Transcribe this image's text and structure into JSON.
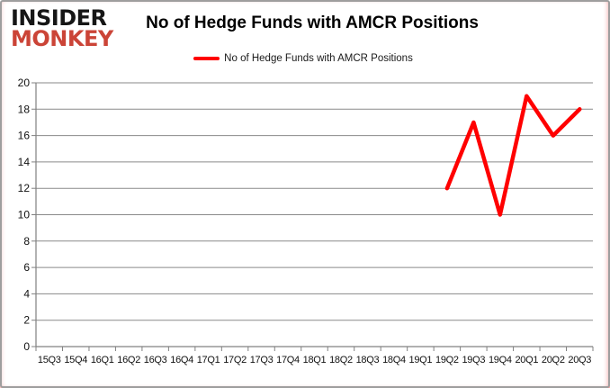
{
  "brand": {
    "line1": "INSIDER",
    "line2": "MONKEY",
    "color": "#CB4437"
  },
  "header": {
    "title": "No of Hedge Funds with AMCR Positions"
  },
  "legend": {
    "label": "No of Hedge Funds with AMCR Positions",
    "line_color": "#FF0000"
  },
  "chart_data": {
    "type": "line",
    "title": "No of Hedge Funds with AMCR Positions",
    "xlabel": "",
    "ylabel": "",
    "categories": [
      "15Q3",
      "15Q4",
      "16Q1",
      "16Q2",
      "16Q3",
      "16Q4",
      "17Q1",
      "17Q2",
      "17Q3",
      "17Q4",
      "18Q1",
      "18Q2",
      "18Q3",
      "18Q4",
      "19Q1",
      "19Q2",
      "19Q3",
      "19Q4",
      "20Q1",
      "20Q2",
      "20Q3"
    ],
    "series": [
      {
        "name": "No of Hedge Funds with AMCR Positions",
        "color": "#FF0000",
        "values": [
          null,
          null,
          null,
          null,
          null,
          null,
          null,
          null,
          null,
          null,
          null,
          null,
          null,
          null,
          null,
          12,
          17,
          10,
          19,
          16,
          18
        ]
      }
    ],
    "ylim": [
      0,
      20
    ],
    "yticks": [
      0,
      2,
      4,
      6,
      8,
      10,
      12,
      14,
      16,
      18,
      20
    ],
    "grid": true,
    "legend_position": "top-center"
  },
  "colors": {
    "gridline": "#8a8a8a",
    "axis": "#808080",
    "text": "#111111"
  }
}
